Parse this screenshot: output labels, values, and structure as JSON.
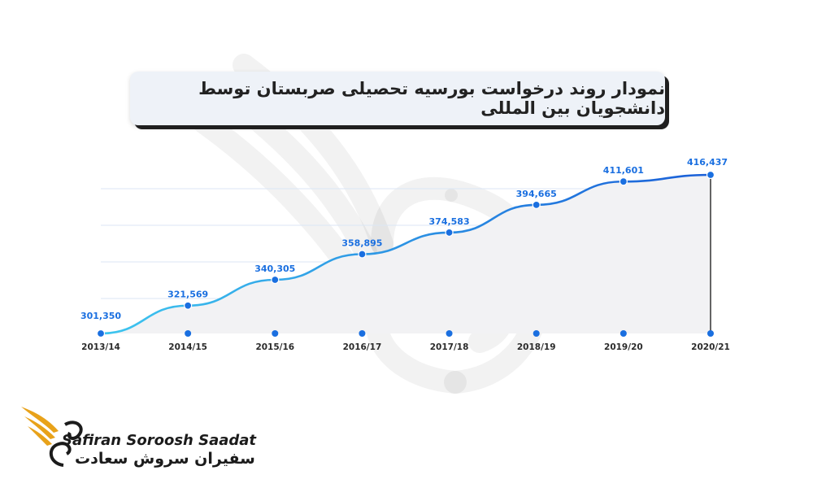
{
  "title": "نمودار روند درخواست بورسیه تحصیلی صربستان توسط دانشجویان بین المللی",
  "brand": {
    "name_en": "Safiran Soroosh Saadat",
    "name_fa": "سفیران سروش سعادت"
  },
  "colors": {
    "line_start": "#3ec6ef",
    "line_end": "#1a5fd8",
    "point": "#1a6fe0",
    "label": "#1a6fe0",
    "area": "#f2f2f4",
    "grid": "#dbe6f5",
    "logo_gold": "#e8a21a"
  },
  "chart_data": {
    "type": "area",
    "categories": [
      "2013/14",
      "2014/15",
      "2015/16",
      "2016/17",
      "2017/18",
      "2018/19",
      "2019/20",
      "2020/21"
    ],
    "values": [
      301350,
      321569,
      340305,
      358895,
      374583,
      394665,
      411601,
      416437
    ],
    "value_labels": [
      "301,350",
      "321,569",
      "340,305",
      "358,895",
      "374,583",
      "394,665",
      "411,601",
      "416,437"
    ],
    "ylim": [
      301350,
      416437
    ],
    "grid": true,
    "title": "",
    "xlabel": "",
    "ylabel": ""
  }
}
